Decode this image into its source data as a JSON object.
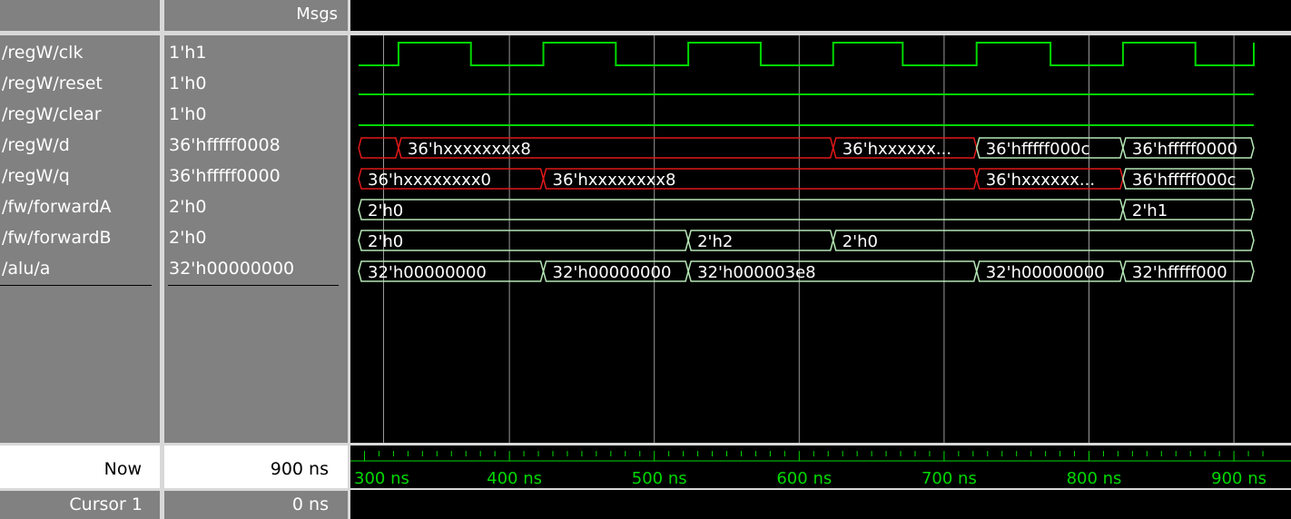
{
  "header": {
    "msgs_label": "Msgs"
  },
  "signals": [
    {
      "name": "/regW/clk",
      "value": "1'h1"
    },
    {
      "name": "/regW/reset",
      "value": "1'h0"
    },
    {
      "name": "/regW/clear",
      "value": "1'h0"
    },
    {
      "name": "/regW/d",
      "value": "36'hfffff0008"
    },
    {
      "name": "/regW/q",
      "value": "36'hfffff0000"
    },
    {
      "name": "/fw/forwardA",
      "value": "2'h0"
    },
    {
      "name": "/fw/forwardB",
      "value": "2'h0"
    },
    {
      "name": "/alu/a",
      "value": "32'h00000000"
    }
  ],
  "footer": {
    "now_label": "Now",
    "now_value": "900 ns",
    "cursor_label": "Cursor 1",
    "cursor_value": "0 ns"
  },
  "timeline": {
    "start_ns": 300,
    "end_ns": 900,
    "ticks": [
      {
        "t": 300,
        "label": "300 ns"
      },
      {
        "t": 400,
        "label": "400 ns"
      },
      {
        "t": 500,
        "label": "500 ns"
      },
      {
        "t": 600,
        "label": "600 ns"
      },
      {
        "t": 700,
        "label": "700 ns"
      },
      {
        "t": 800,
        "label": "800 ns"
      },
      {
        "t": 900,
        "label": "900 ns"
      }
    ]
  },
  "waves": {
    "clk_rising_ns": [
      320,
      420,
      520,
      620,
      719,
      820
    ],
    "clk_falling_ns": [
      370,
      470,
      570,
      668,
      770,
      870
    ],
    "buses": [
      {
        "row": 3,
        "segments": [
          {
            "start": 300,
            "end": 320,
            "label": "",
            "color": "red"
          },
          {
            "start": 320,
            "end": 620,
            "label": "36'hxxxxxxxx8",
            "color": "red"
          },
          {
            "start": 620,
            "end": 719,
            "label": "36'hxxxxxx...",
            "color": "red"
          },
          {
            "start": 719,
            "end": 820,
            "label": "36'hfffff000c",
            "color": "green"
          },
          {
            "start": 820,
            "end": 920,
            "label": "36'hfffff0000",
            "color": "green"
          }
        ]
      },
      {
        "row": 4,
        "segments": [
          {
            "start": 300,
            "end": 420,
            "label": "36'hxxxxxxxx0",
            "color": "red"
          },
          {
            "start": 420,
            "end": 719,
            "label": "36'hxxxxxxxx8",
            "color": "red"
          },
          {
            "start": 719,
            "end": 820,
            "label": "36'hxxxxxx...",
            "color": "red"
          },
          {
            "start": 820,
            "end": 920,
            "label": "36'hfffff000c",
            "color": "green"
          }
        ]
      },
      {
        "row": 5,
        "segments": [
          {
            "start": 300,
            "end": 820,
            "label": "2'h0",
            "color": "green"
          },
          {
            "start": 820,
            "end": 920,
            "label": "2'h1",
            "color": "green"
          }
        ]
      },
      {
        "row": 6,
        "segments": [
          {
            "start": 300,
            "end": 520,
            "label": "2'h0",
            "color": "green"
          },
          {
            "start": 520,
            "end": 620,
            "label": "2'h2",
            "color": "green"
          },
          {
            "start": 620,
            "end": 920,
            "label": "2'h0",
            "color": "green"
          }
        ]
      },
      {
        "row": 7,
        "segments": [
          {
            "start": 300,
            "end": 420,
            "label": "32'h00000000",
            "color": "green"
          },
          {
            "start": 420,
            "end": 520,
            "label": "32'h00000000",
            "color": "green"
          },
          {
            "start": 520,
            "end": 719,
            "label": "32'h000003e8",
            "color": "green"
          },
          {
            "start": 719,
            "end": 820,
            "label": "32'h00000000",
            "color": "green"
          },
          {
            "start": 820,
            "end": 920,
            "label": "32'hfffff000",
            "color": "green"
          }
        ]
      }
    ]
  },
  "colors": {
    "wave_green": "#00d800",
    "bus_green": "#b4e6b4",
    "bus_red": "#e01818",
    "grid": "#9a9a9a",
    "panel_gray": "#818181",
    "background": "#000000"
  }
}
